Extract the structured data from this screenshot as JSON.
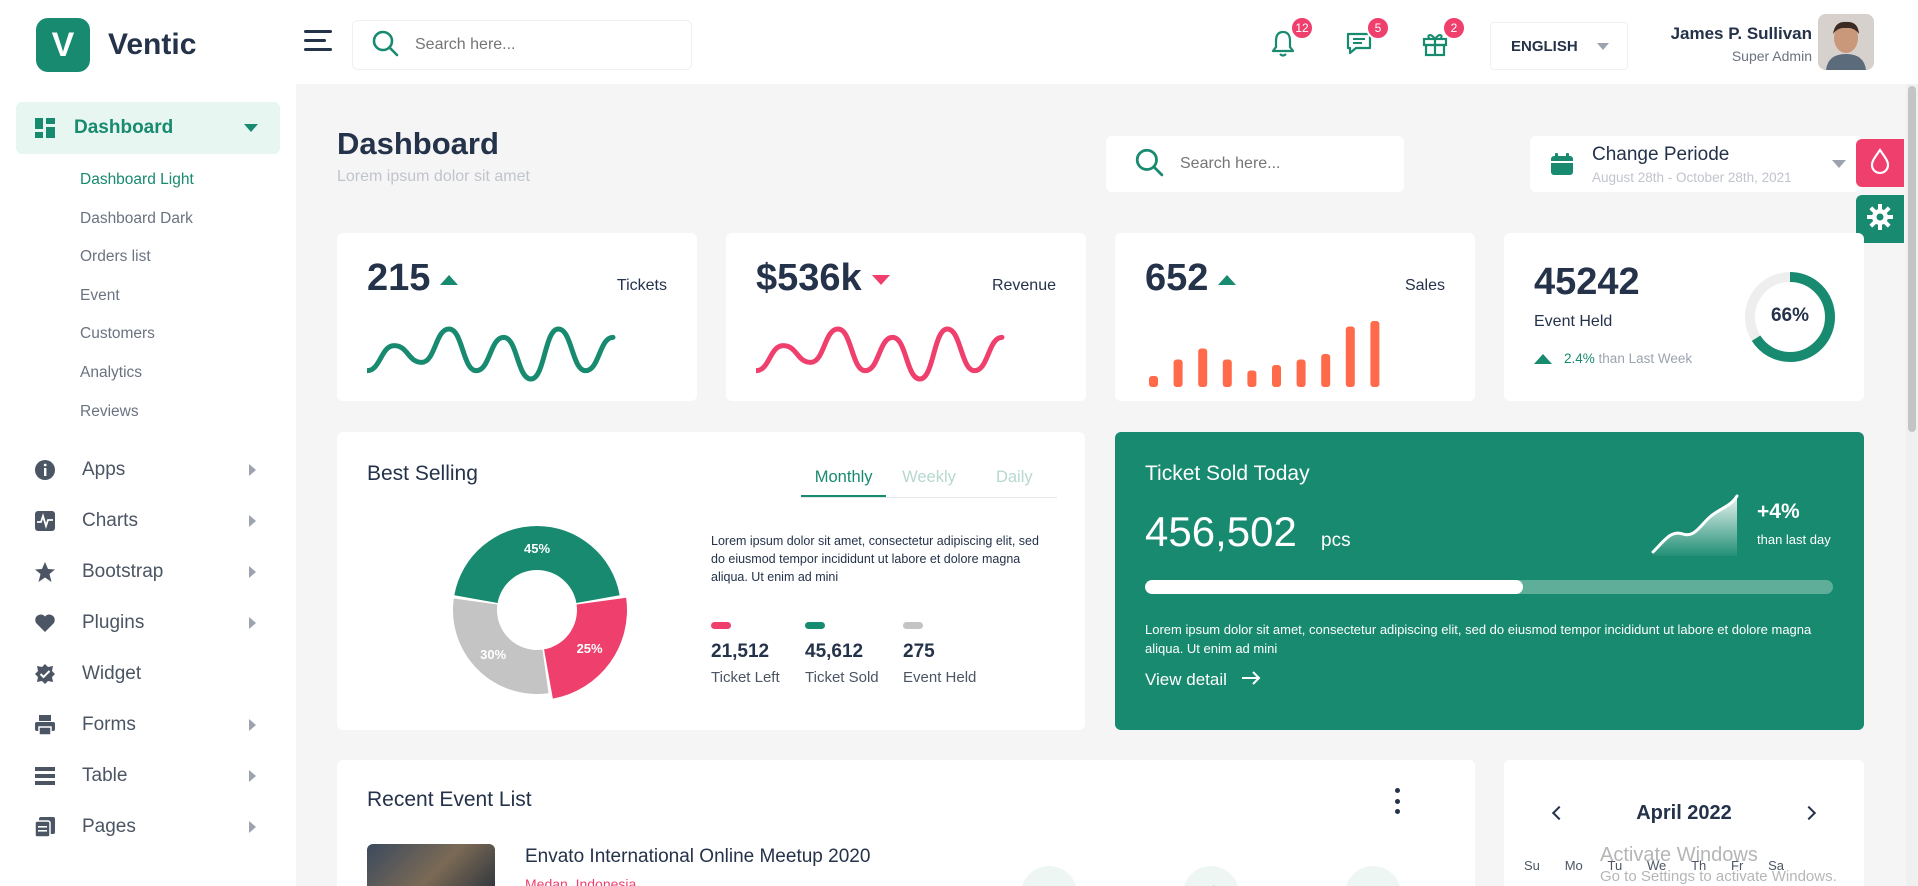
{
  "brand": {
    "mark": "V",
    "name": "Ventic"
  },
  "sidebar": {
    "active": {
      "label": "Dashboard",
      "icon": "dashboard-grid-icon"
    },
    "submenu": [
      "Dashboard Light",
      "Dashboard Dark",
      "Orders list",
      "Event",
      "Customers",
      "Analytics",
      "Reviews"
    ],
    "items": [
      {
        "label": "Apps",
        "icon": "info-icon"
      },
      {
        "label": "Charts",
        "icon": "chart-pulse-icon"
      },
      {
        "label": "Bootstrap",
        "icon": "star-icon"
      },
      {
        "label": "Plugins",
        "icon": "heart-icon"
      },
      {
        "label": "Widget",
        "icon": "badge-check-icon"
      },
      {
        "label": "Forms",
        "icon": "printer-icon"
      },
      {
        "label": "Table",
        "icon": "table-icon"
      },
      {
        "label": "Pages",
        "icon": "pages-icon"
      }
    ]
  },
  "header": {
    "search_placeholder": "Search here...",
    "notifications": "12",
    "messages": "5",
    "gifts": "2",
    "language": "ENGLISH",
    "user_name": "James P. Sullivan",
    "user_role": "Super Admin"
  },
  "page": {
    "title": "Dashboard",
    "subtitle": "Lorem ipsum dolor sit amet",
    "search_placeholder": "Search here...",
    "period_title": "Change Periode",
    "period_dates": "August 28th - October 28th, 2021"
  },
  "stats": {
    "tickets": {
      "value": "215",
      "label": "Tickets"
    },
    "revenue": {
      "value": "$536k",
      "label": "Revenue"
    },
    "sales": {
      "value": "652",
      "label": "Sales"
    },
    "events": {
      "value": "45242",
      "label": "Event Held",
      "change": "2.4%",
      "change_text": "than Last Week",
      "percent": "66%",
      "percent_value": 66
    }
  },
  "best_selling": {
    "title": "Best Selling",
    "tabs": [
      "Monthly",
      "Weekly",
      "Daily"
    ],
    "description": "Lorem ipsum dolor sit amet, consectetur adipiscing elit, sed do eiusmod tempor incididunt ut labore et dolore magna aliqua. Ut enim ad mini",
    "legend": [
      {
        "value": "21,512",
        "label": "Ticket Left",
        "color": "#ef3f6c"
      },
      {
        "value": "45,612",
        "label": "Ticket Sold",
        "color": "#178a6f"
      },
      {
        "value": "275",
        "label": "Event Held",
        "color": "#c4c4c4"
      }
    ]
  },
  "chart_data": [
    {
      "type": "pie",
      "categories": [
        "Ticket Sold",
        "Ticket Left",
        "Event Held"
      ],
      "values": [
        45,
        25,
        30
      ],
      "data_labels": [
        "45%",
        "25%",
        "30%"
      ],
      "colors": [
        "#178a6f",
        "#ef3f6c",
        "#c4c4c4"
      ]
    },
    {
      "type": "bar",
      "values": [
        2,
        5,
        7,
        5,
        3,
        4,
        5,
        6,
        11,
        12
      ],
      "color": "#ff6b4a"
    },
    {
      "type": "line",
      "values": [
        2,
        5,
        3,
        7,
        2,
        6,
        1,
        7,
        2,
        6
      ],
      "color": "#178a6f"
    },
    {
      "type": "line",
      "values": [
        2,
        5,
        3,
        7,
        2,
        6,
        1,
        7,
        2,
        6
      ],
      "color": "#ef3f6c"
    }
  ],
  "ticket_sold": {
    "title": "Ticket Sold Today",
    "value": "456,502",
    "unit": "pcs",
    "change": "+4%",
    "change_text": "than last day",
    "progress": 0.55,
    "description": "Lorem ipsum dolor sit amet, consectetur adipiscing elit, sed do eiusmod tempor incididunt ut labore et dolore magna aliqua. Ut enim ad mini",
    "link": "View detail"
  },
  "recent_events": {
    "title": "Recent Event List",
    "items": [
      {
        "title": "Envato International Online Meetup 2020",
        "location": "Medan, Indonesia"
      }
    ]
  },
  "calendar": {
    "month": "April 2022",
    "days": [
      "Su",
      "Mo",
      "Tu",
      "We",
      "Th",
      "Fr",
      "Sa"
    ]
  },
  "watermark": {
    "title": "Activate Windows",
    "text": "Go to Settings to activate Windows."
  }
}
